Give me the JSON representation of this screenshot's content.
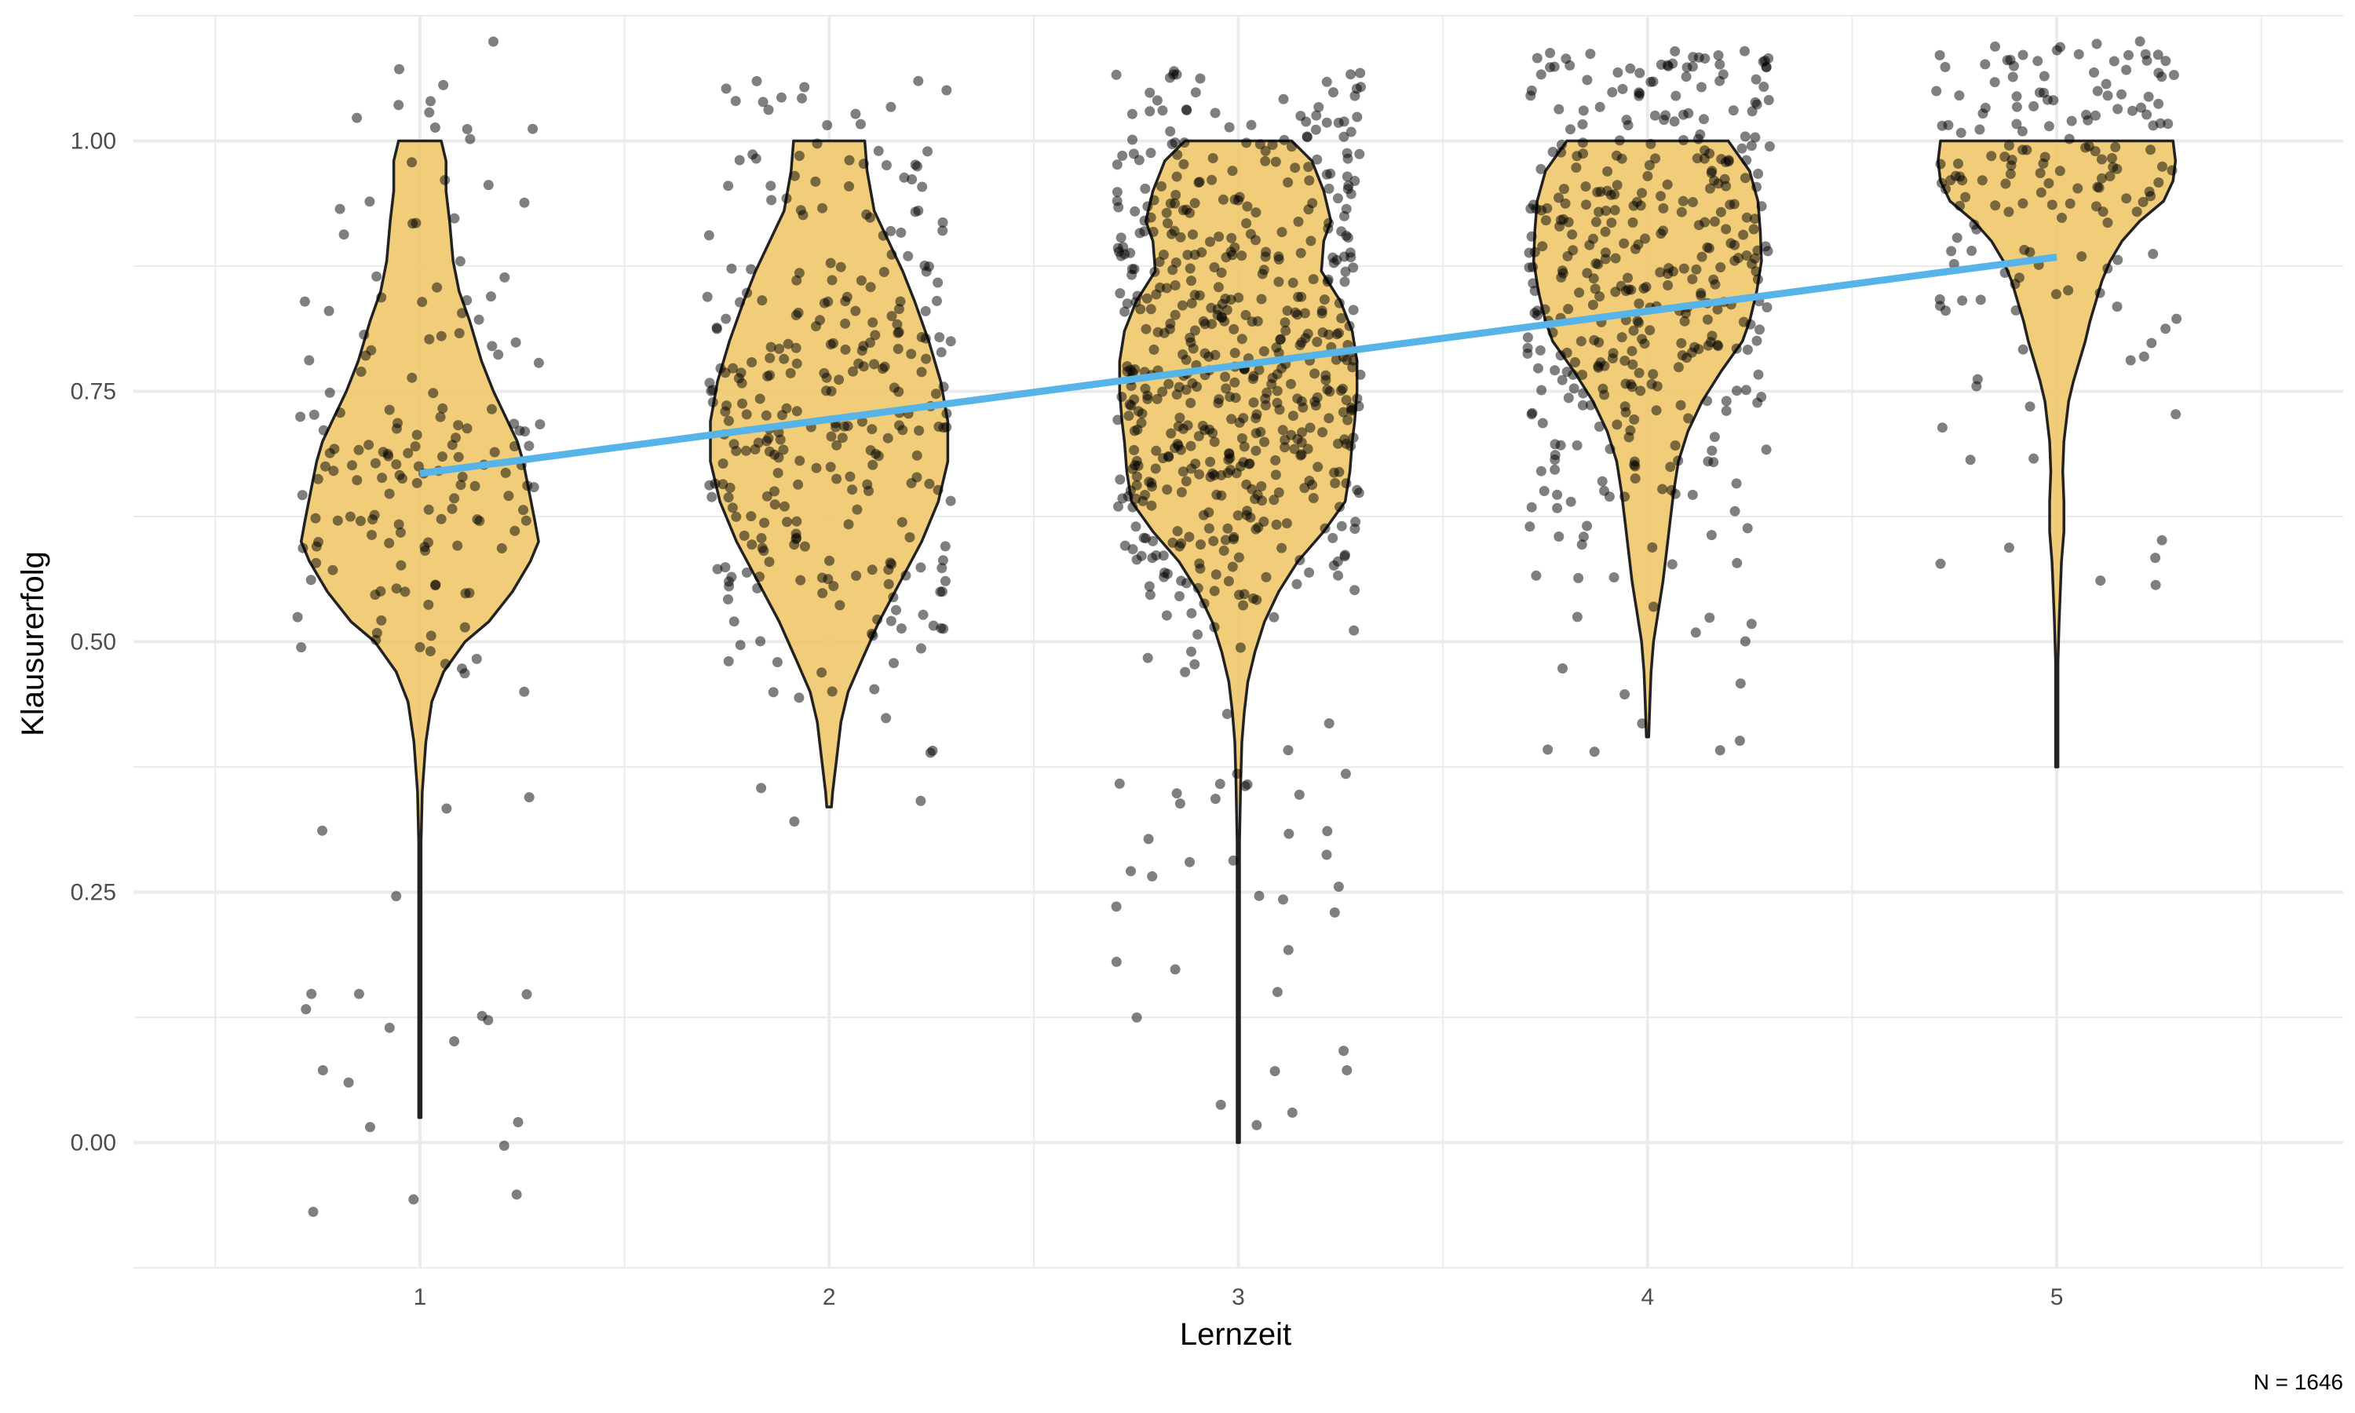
{
  "chart_data": {
    "type": "violin",
    "title": "",
    "xlabel": "Lernzeit",
    "ylabel": "Klausurerfolg",
    "caption": "N = 1646",
    "categories": [
      "1",
      "2",
      "3",
      "4",
      "5"
    ],
    "x_ticks": [
      "1",
      "2",
      "3",
      "4",
      "5"
    ],
    "y_ticks": [
      "0.00",
      "0.25",
      "0.50",
      "0.75",
      "1.00"
    ],
    "y_tick_values": [
      0.0,
      0.25,
      0.5,
      0.75,
      1.0
    ],
    "xlim": [
      0.3,
      5.7
    ],
    "ylim": [
      -0.125,
      1.125
    ],
    "grid": true,
    "legend": "none",
    "colors": {
      "violin_fill": "#EFC66A",
      "violin_stroke": "#222222",
      "points": "#000000",
      "trend_line": "#56B4E9",
      "grid": "#EBEBEB"
    },
    "violins": [
      {
        "category": "1",
        "min": 0.025,
        "max": 1.0,
        "profile": [
          [
            1.0,
            0.18
          ],
          [
            0.98,
            0.22
          ],
          [
            0.95,
            0.22
          ],
          [
            0.92,
            0.25
          ],
          [
            0.88,
            0.28
          ],
          [
            0.85,
            0.33
          ],
          [
            0.82,
            0.42
          ],
          [
            0.78,
            0.52
          ],
          [
            0.75,
            0.62
          ],
          [
            0.72,
            0.74
          ],
          [
            0.7,
            0.82
          ],
          [
            0.68,
            0.87
          ],
          [
            0.65,
            0.92
          ],
          [
            0.62,
            0.97
          ],
          [
            0.6,
            1.0
          ],
          [
            0.58,
            0.93
          ],
          [
            0.55,
            0.78
          ],
          [
            0.52,
            0.58
          ],
          [
            0.5,
            0.38
          ],
          [
            0.47,
            0.2
          ],
          [
            0.44,
            0.1
          ],
          [
            0.4,
            0.05
          ],
          [
            0.35,
            0.02
          ],
          [
            0.3,
            0.01
          ],
          [
            0.2,
            0.01
          ],
          [
            0.1,
            0.01
          ],
          [
            0.025,
            0.01
          ]
        ]
      },
      {
        "category": "2",
        "min": 0.335,
        "max": 1.0,
        "profile": [
          [
            1.0,
            0.3
          ],
          [
            0.97,
            0.32
          ],
          [
            0.93,
            0.38
          ],
          [
            0.9,
            0.5
          ],
          [
            0.87,
            0.62
          ],
          [
            0.84,
            0.72
          ],
          [
            0.8,
            0.84
          ],
          [
            0.76,
            0.94
          ],
          [
            0.72,
            1.0
          ],
          [
            0.68,
            1.0
          ],
          [
            0.64,
            0.92
          ],
          [
            0.6,
            0.78
          ],
          [
            0.56,
            0.6
          ],
          [
            0.52,
            0.42
          ],
          [
            0.48,
            0.27
          ],
          [
            0.45,
            0.16
          ],
          [
            0.42,
            0.1
          ],
          [
            0.38,
            0.06
          ],
          [
            0.35,
            0.03
          ],
          [
            0.335,
            0.02
          ]
        ]
      },
      {
        "category": "3",
        "min": 0.0,
        "max": 1.0,
        "profile": [
          [
            1.0,
            0.45
          ],
          [
            0.98,
            0.62
          ],
          [
            0.95,
            0.72
          ],
          [
            0.92,
            0.78
          ],
          [
            0.9,
            0.72
          ],
          [
            0.87,
            0.7
          ],
          [
            0.84,
            0.86
          ],
          [
            0.81,
            0.96
          ],
          [
            0.78,
            1.0
          ],
          [
            0.75,
            1.0
          ],
          [
            0.72,
            0.98
          ],
          [
            0.7,
            0.96
          ],
          [
            0.67,
            0.94
          ],
          [
            0.64,
            0.9
          ],
          [
            0.61,
            0.72
          ],
          [
            0.58,
            0.5
          ],
          [
            0.55,
            0.34
          ],
          [
            0.52,
            0.22
          ],
          [
            0.49,
            0.14
          ],
          [
            0.46,
            0.08
          ],
          [
            0.43,
            0.05
          ],
          [
            0.4,
            0.03
          ],
          [
            0.36,
            0.02
          ],
          [
            0.3,
            0.01
          ],
          [
            0.2,
            0.01
          ],
          [
            0.1,
            0.01
          ],
          [
            0.0,
            0.01
          ]
        ]
      },
      {
        "category": "4",
        "min": 0.405,
        "max": 1.0,
        "profile": [
          [
            1.0,
            0.68
          ],
          [
            0.97,
            0.86
          ],
          [
            0.94,
            0.93
          ],
          [
            0.91,
            0.95
          ],
          [
            0.88,
            0.96
          ],
          [
            0.85,
            0.92
          ],
          [
            0.82,
            0.86
          ],
          [
            0.8,
            0.8
          ],
          [
            0.77,
            0.62
          ],
          [
            0.74,
            0.46
          ],
          [
            0.71,
            0.34
          ],
          [
            0.68,
            0.26
          ],
          [
            0.65,
            0.22
          ],
          [
            0.62,
            0.19
          ],
          [
            0.59,
            0.16
          ],
          [
            0.56,
            0.13
          ],
          [
            0.53,
            0.09
          ],
          [
            0.5,
            0.05
          ],
          [
            0.47,
            0.03
          ],
          [
            0.44,
            0.02
          ],
          [
            0.405,
            0.01
          ]
        ]
      },
      {
        "category": "5",
        "min": 0.375,
        "max": 1.0,
        "profile": [
          [
            1.0,
            0.98
          ],
          [
            0.98,
            1.0
          ],
          [
            0.96,
            0.98
          ],
          [
            0.94,
            0.9
          ],
          [
            0.92,
            0.7
          ],
          [
            0.9,
            0.55
          ],
          [
            0.88,
            0.45
          ],
          [
            0.86,
            0.38
          ],
          [
            0.84,
            0.33
          ],
          [
            0.82,
            0.28
          ],
          [
            0.8,
            0.24
          ],
          [
            0.78,
            0.19
          ],
          [
            0.76,
            0.14
          ],
          [
            0.74,
            0.1
          ],
          [
            0.72,
            0.08
          ],
          [
            0.7,
            0.06
          ],
          [
            0.67,
            0.05
          ],
          [
            0.64,
            0.06
          ],
          [
            0.61,
            0.06
          ],
          [
            0.58,
            0.04
          ],
          [
            0.55,
            0.03
          ],
          [
            0.52,
            0.02
          ],
          [
            0.48,
            0.01
          ],
          [
            0.44,
            0.01
          ],
          [
            0.4,
            0.01
          ],
          [
            0.375,
            0.01
          ]
        ]
      }
    ],
    "trend_line": {
      "x": [
        1,
        5
      ],
      "y": [
        0.668,
        0.884
      ]
    },
    "points": [
      {
        "category": "1",
        "n": 180,
        "min": -0.07,
        "max": 1.1
      },
      {
        "category": "2",
        "n": 300,
        "min": 0.31,
        "max": 1.06
      },
      {
        "category": "3",
        "n": 600,
        "min": 0.01,
        "max": 1.07
      },
      {
        "category": "4",
        "n": 400,
        "min": 0.38,
        "max": 1.09
      },
      {
        "category": "5",
        "n": 166,
        "min": 0.46,
        "max": 1.1
      }
    ]
  }
}
